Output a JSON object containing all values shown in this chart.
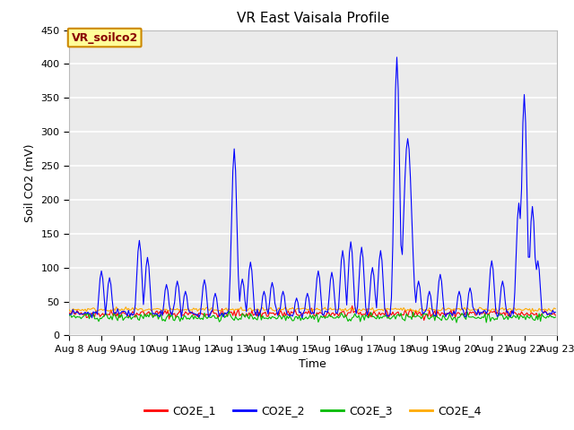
{
  "title": "VR East Vaisala Profile",
  "xlabel": "Time",
  "ylabel": "Soil CO2 (mV)",
  "ylim": [
    0,
    450
  ],
  "annotation_text": "VR_soilco2",
  "legend_labels": [
    "CO2E_1",
    "CO2E_2",
    "CO2E_3",
    "CO2E_4"
  ],
  "colors": {
    "CO2E_1": "#ff0000",
    "CO2E_2": "#0000ff",
    "CO2E_3": "#00bb00",
    "CO2E_4": "#ffaa00"
  },
  "fig_bg": "#ffffff",
  "plot_bg": "#ebebeb",
  "grid_color": "#ffffff",
  "yticks": [
    0,
    50,
    100,
    150,
    200,
    250,
    300,
    350,
    400,
    450
  ],
  "title_fontsize": 11,
  "axis_fontsize": 9,
  "tick_fontsize": 8
}
